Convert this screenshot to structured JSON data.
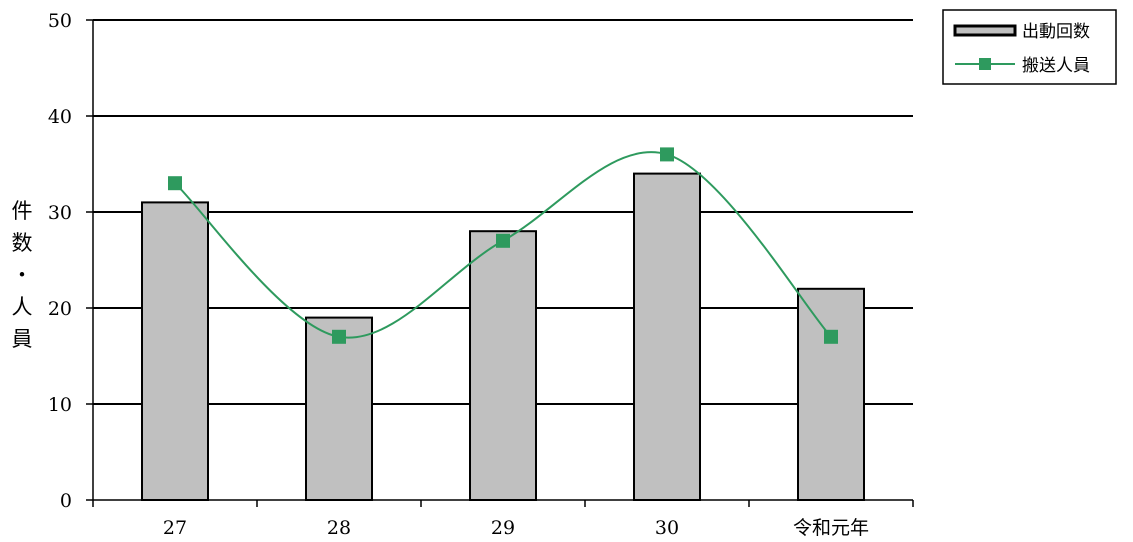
{
  "chart_data": {
    "type": "bar",
    "title": "",
    "xlabel": "",
    "ylabel": "件数・人員",
    "ylim": [
      0,
      50
    ],
    "yticks": [
      0,
      10,
      20,
      30,
      40,
      50
    ],
    "grid": true,
    "legend_position": "top-right",
    "categories": [
      "27",
      "28",
      "29",
      "30",
      "令和元年"
    ],
    "series": [
      {
        "name": "出動回数",
        "kind": "bar",
        "color": "#c0c0c0",
        "values": [
          31,
          19,
          28,
          34,
          22
        ]
      },
      {
        "name": "搬送人員",
        "kind": "line",
        "color": "#2e9a5e",
        "smooth": true,
        "values": [
          33,
          17,
          27,
          36,
          17
        ]
      }
    ]
  }
}
